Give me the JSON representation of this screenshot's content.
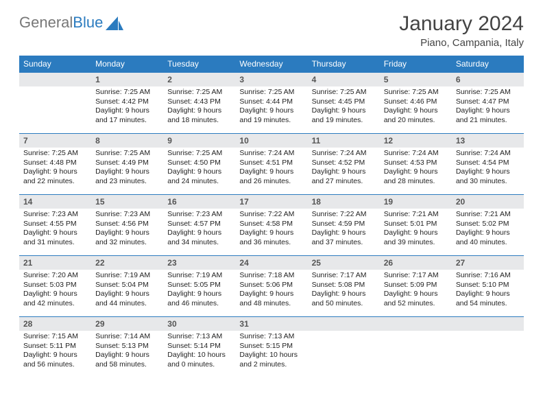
{
  "logo": {
    "text1": "General",
    "text2": "Blue"
  },
  "title": "January 2024",
  "location": "Piano, Campania, Italy",
  "colors": {
    "headerBg": "#2b7bbf",
    "headerText": "#ffffff",
    "dayNumBg": "#e7e8ea",
    "rowBorder": "#2b7bbf",
    "pageBg": "#ffffff"
  },
  "weekdays": [
    "Sunday",
    "Monday",
    "Tuesday",
    "Wednesday",
    "Thursday",
    "Friday",
    "Saturday"
  ],
  "weeks": [
    [
      {
        "num": "",
        "lines": []
      },
      {
        "num": "1",
        "lines": [
          "Sunrise: 7:25 AM",
          "Sunset: 4:42 PM",
          "Daylight: 9 hours",
          "and 17 minutes."
        ]
      },
      {
        "num": "2",
        "lines": [
          "Sunrise: 7:25 AM",
          "Sunset: 4:43 PM",
          "Daylight: 9 hours",
          "and 18 minutes."
        ]
      },
      {
        "num": "3",
        "lines": [
          "Sunrise: 7:25 AM",
          "Sunset: 4:44 PM",
          "Daylight: 9 hours",
          "and 19 minutes."
        ]
      },
      {
        "num": "4",
        "lines": [
          "Sunrise: 7:25 AM",
          "Sunset: 4:45 PM",
          "Daylight: 9 hours",
          "and 19 minutes."
        ]
      },
      {
        "num": "5",
        "lines": [
          "Sunrise: 7:25 AM",
          "Sunset: 4:46 PM",
          "Daylight: 9 hours",
          "and 20 minutes."
        ]
      },
      {
        "num": "6",
        "lines": [
          "Sunrise: 7:25 AM",
          "Sunset: 4:47 PM",
          "Daylight: 9 hours",
          "and 21 minutes."
        ]
      }
    ],
    [
      {
        "num": "7",
        "lines": [
          "Sunrise: 7:25 AM",
          "Sunset: 4:48 PM",
          "Daylight: 9 hours",
          "and 22 minutes."
        ]
      },
      {
        "num": "8",
        "lines": [
          "Sunrise: 7:25 AM",
          "Sunset: 4:49 PM",
          "Daylight: 9 hours",
          "and 23 minutes."
        ]
      },
      {
        "num": "9",
        "lines": [
          "Sunrise: 7:25 AM",
          "Sunset: 4:50 PM",
          "Daylight: 9 hours",
          "and 24 minutes."
        ]
      },
      {
        "num": "10",
        "lines": [
          "Sunrise: 7:24 AM",
          "Sunset: 4:51 PM",
          "Daylight: 9 hours",
          "and 26 minutes."
        ]
      },
      {
        "num": "11",
        "lines": [
          "Sunrise: 7:24 AM",
          "Sunset: 4:52 PM",
          "Daylight: 9 hours",
          "and 27 minutes."
        ]
      },
      {
        "num": "12",
        "lines": [
          "Sunrise: 7:24 AM",
          "Sunset: 4:53 PM",
          "Daylight: 9 hours",
          "and 28 minutes."
        ]
      },
      {
        "num": "13",
        "lines": [
          "Sunrise: 7:24 AM",
          "Sunset: 4:54 PM",
          "Daylight: 9 hours",
          "and 30 minutes."
        ]
      }
    ],
    [
      {
        "num": "14",
        "lines": [
          "Sunrise: 7:23 AM",
          "Sunset: 4:55 PM",
          "Daylight: 9 hours",
          "and 31 minutes."
        ]
      },
      {
        "num": "15",
        "lines": [
          "Sunrise: 7:23 AM",
          "Sunset: 4:56 PM",
          "Daylight: 9 hours",
          "and 32 minutes."
        ]
      },
      {
        "num": "16",
        "lines": [
          "Sunrise: 7:23 AM",
          "Sunset: 4:57 PM",
          "Daylight: 9 hours",
          "and 34 minutes."
        ]
      },
      {
        "num": "17",
        "lines": [
          "Sunrise: 7:22 AM",
          "Sunset: 4:58 PM",
          "Daylight: 9 hours",
          "and 36 minutes."
        ]
      },
      {
        "num": "18",
        "lines": [
          "Sunrise: 7:22 AM",
          "Sunset: 4:59 PM",
          "Daylight: 9 hours",
          "and 37 minutes."
        ]
      },
      {
        "num": "19",
        "lines": [
          "Sunrise: 7:21 AM",
          "Sunset: 5:01 PM",
          "Daylight: 9 hours",
          "and 39 minutes."
        ]
      },
      {
        "num": "20",
        "lines": [
          "Sunrise: 7:21 AM",
          "Sunset: 5:02 PM",
          "Daylight: 9 hours",
          "and 40 minutes."
        ]
      }
    ],
    [
      {
        "num": "21",
        "lines": [
          "Sunrise: 7:20 AM",
          "Sunset: 5:03 PM",
          "Daylight: 9 hours",
          "and 42 minutes."
        ]
      },
      {
        "num": "22",
        "lines": [
          "Sunrise: 7:19 AM",
          "Sunset: 5:04 PM",
          "Daylight: 9 hours",
          "and 44 minutes."
        ]
      },
      {
        "num": "23",
        "lines": [
          "Sunrise: 7:19 AM",
          "Sunset: 5:05 PM",
          "Daylight: 9 hours",
          "and 46 minutes."
        ]
      },
      {
        "num": "24",
        "lines": [
          "Sunrise: 7:18 AM",
          "Sunset: 5:06 PM",
          "Daylight: 9 hours",
          "and 48 minutes."
        ]
      },
      {
        "num": "25",
        "lines": [
          "Sunrise: 7:17 AM",
          "Sunset: 5:08 PM",
          "Daylight: 9 hours",
          "and 50 minutes."
        ]
      },
      {
        "num": "26",
        "lines": [
          "Sunrise: 7:17 AM",
          "Sunset: 5:09 PM",
          "Daylight: 9 hours",
          "and 52 minutes."
        ]
      },
      {
        "num": "27",
        "lines": [
          "Sunrise: 7:16 AM",
          "Sunset: 5:10 PM",
          "Daylight: 9 hours",
          "and 54 minutes."
        ]
      }
    ],
    [
      {
        "num": "28",
        "lines": [
          "Sunrise: 7:15 AM",
          "Sunset: 5:11 PM",
          "Daylight: 9 hours",
          "and 56 minutes."
        ]
      },
      {
        "num": "29",
        "lines": [
          "Sunrise: 7:14 AM",
          "Sunset: 5:13 PM",
          "Daylight: 9 hours",
          "and 58 minutes."
        ]
      },
      {
        "num": "30",
        "lines": [
          "Sunrise: 7:13 AM",
          "Sunset: 5:14 PM",
          "Daylight: 10 hours",
          "and 0 minutes."
        ]
      },
      {
        "num": "31",
        "lines": [
          "Sunrise: 7:13 AM",
          "Sunset: 5:15 PM",
          "Daylight: 10 hours",
          "and 2 minutes."
        ]
      },
      {
        "num": "",
        "lines": []
      },
      {
        "num": "",
        "lines": []
      },
      {
        "num": "",
        "lines": []
      }
    ]
  ]
}
